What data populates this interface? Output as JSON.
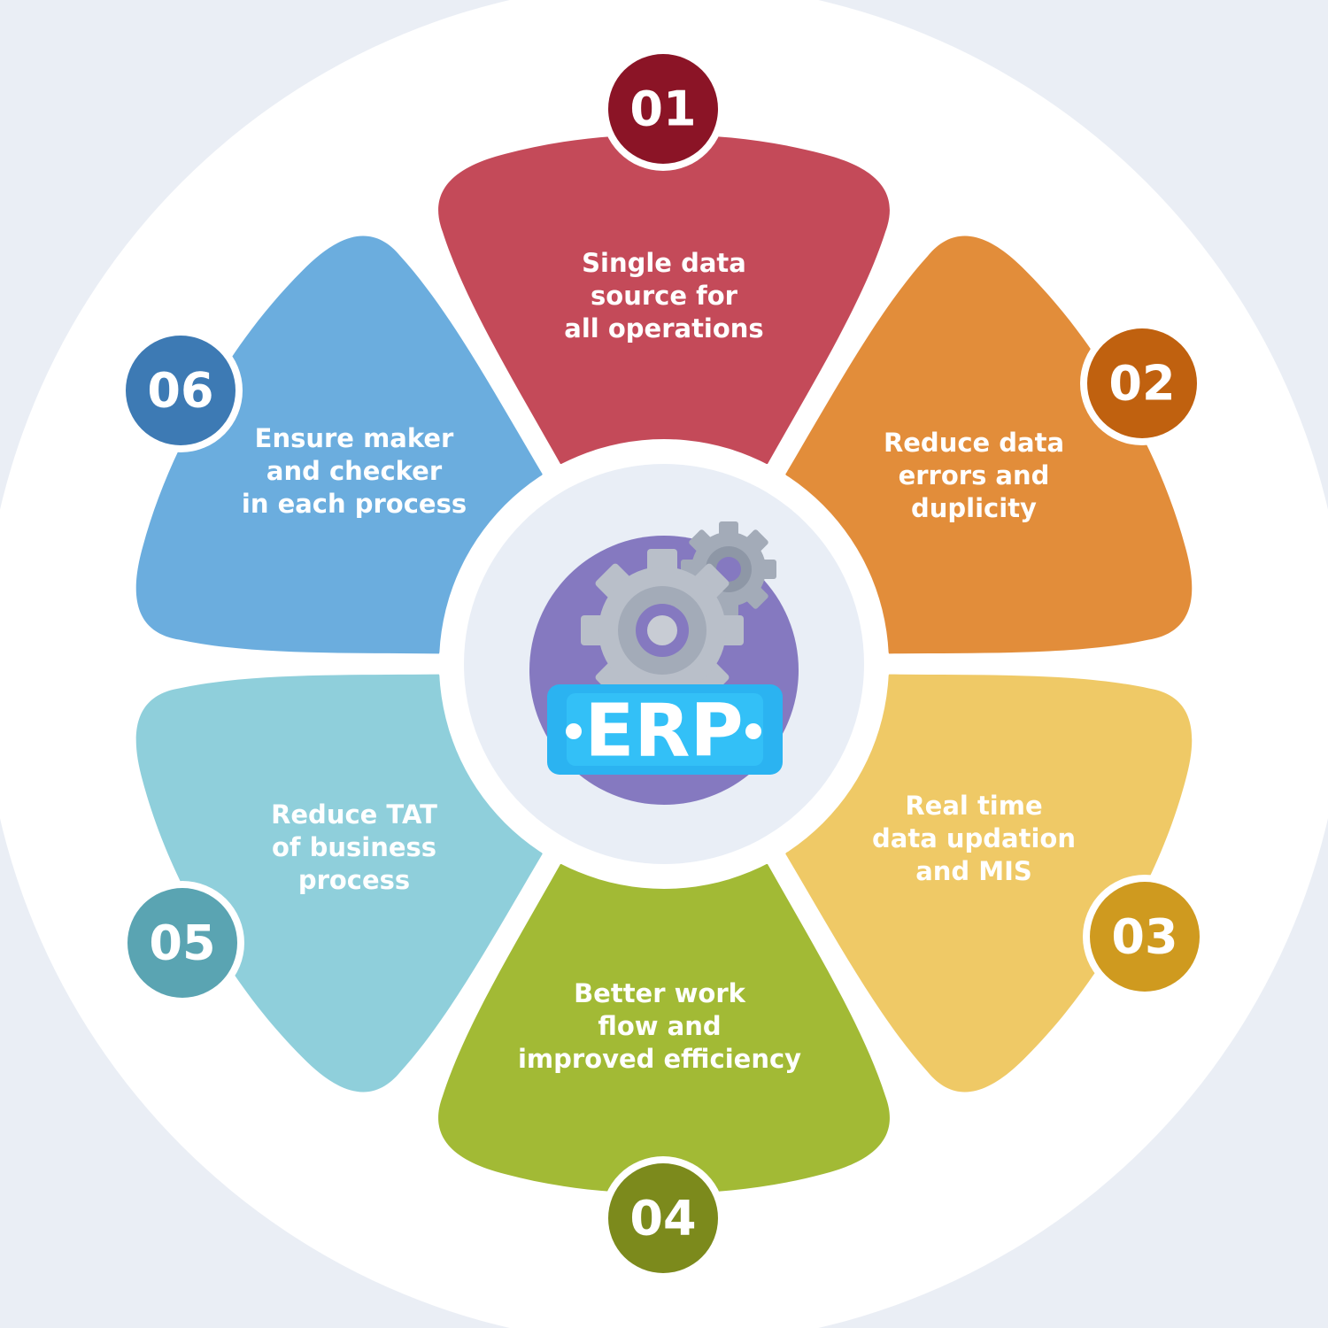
{
  "center": {
    "label": "ERP",
    "icon": "erp-gears-icon"
  },
  "petals": [
    {
      "number": "01",
      "lines": [
        "Single data",
        "source for",
        "all operations"
      ],
      "color": "#c44a59",
      "badge_color": "#8b1426"
    },
    {
      "number": "02",
      "lines": [
        "Reduce data",
        "errors and",
        "duplicity"
      ],
      "color": "#e28d3a",
      "badge_color": "#c0610f"
    },
    {
      "number": "03",
      "lines": [
        "Real time",
        "data updation",
        "and MIS"
      ],
      "color": "#efc966",
      "badge_color": "#cf9a1f"
    },
    {
      "number": "04",
      "lines": [
        "Better work",
        "flow and",
        "improved efficiency"
      ],
      "color": "#a2ba35",
      "badge_color": "#7c8a1c"
    },
    {
      "number": "05",
      "lines": [
        "Reduce TAT",
        "of  business",
        "process"
      ],
      "color": "#8fcfdb",
      "badge_color": "#5aa4b2"
    },
    {
      "number": "06",
      "lines": [
        "Ensure maker",
        "and checker",
        "in each process"
      ],
      "color": "#6badde",
      "badge_color": "#3d7ab4"
    }
  ],
  "colors": {
    "background": "#eaeef5",
    "outer_circle": "#ffffff",
    "hub": "#e9eef6",
    "icon_circle": "#8579c0",
    "erp_badge": "#2bb3f1"
  }
}
